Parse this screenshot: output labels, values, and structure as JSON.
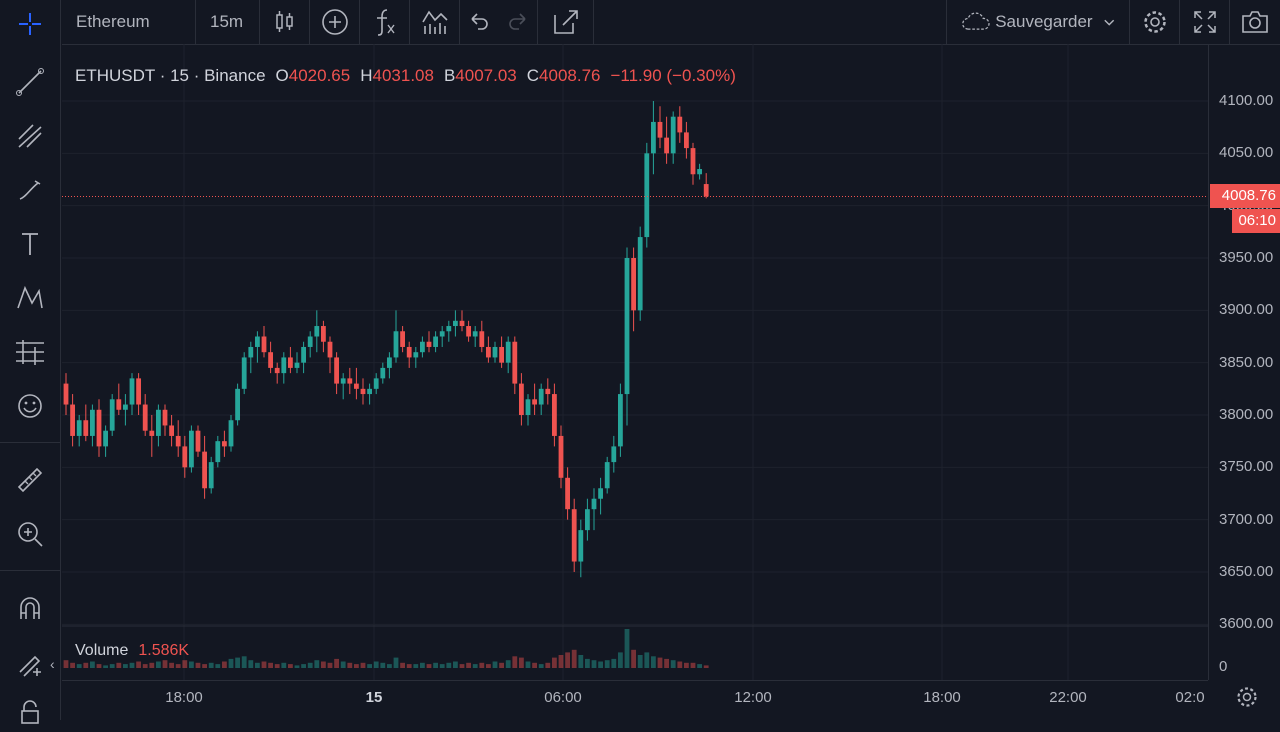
{
  "toolbar": {
    "symbol": "Ethereum",
    "interval": "15m",
    "save_label": "Sauvegarder"
  },
  "legend": {
    "symbol": "ETHUSDT · 15 · Binance",
    "open_label": "O",
    "open": "4020.65",
    "high_label": "H",
    "high": "4031.08",
    "low_label": "B",
    "low": "4007.03",
    "close_label": "C",
    "close": "4008.76",
    "change": "−11.90 (−0.30%)"
  },
  "price_axis": {
    "labels": [
      "4100.00",
      "4050.00",
      "4000.00",
      "3950.00",
      "3900.00",
      "3850.00",
      "3800.00",
      "3750.00",
      "3700.00",
      "3650.00",
      "3600.00",
      "0"
    ],
    "current_price": "4008.76",
    "countdown": "06:10"
  },
  "time_axis": {
    "labels": [
      "18:00",
      "15",
      "06:00",
      "12:00",
      "18:00",
      "22:00",
      "02:0"
    ]
  },
  "volume": {
    "label": "Volume",
    "value": "1.586K"
  },
  "colors": {
    "up": "#26a69a",
    "down": "#ef5350",
    "background": "#131722",
    "grid": "#1e222d"
  },
  "chart_data": {
    "type": "candlestick",
    "title": "ETHUSDT · 15 · Binance",
    "interval": "15m",
    "ylim": [
      3600,
      4120
    ],
    "candles": [
      [
        3830,
        3840,
        3800,
        3810
      ],
      [
        3810,
        3820,
        3770,
        3780
      ],
      [
        3780,
        3800,
        3770,
        3795
      ],
      [
        3795,
        3810,
        3775,
        3780
      ],
      [
        3780,
        3810,
        3770,
        3805
      ],
      [
        3805,
        3815,
        3760,
        3770
      ],
      [
        3770,
        3790,
        3760,
        3785
      ],
      [
        3785,
        3820,
        3780,
        3815
      ],
      [
        3815,
        3830,
        3800,
        3805
      ],
      [
        3805,
        3820,
        3790,
        3810
      ],
      [
        3810,
        3840,
        3800,
        3835
      ],
      [
        3835,
        3840,
        3800,
        3810
      ],
      [
        3810,
        3820,
        3780,
        3785
      ],
      [
        3785,
        3800,
        3760,
        3780
      ],
      [
        3780,
        3810,
        3770,
        3805
      ],
      [
        3805,
        3810,
        3780,
        3790
      ],
      [
        3790,
        3800,
        3770,
        3780
      ],
      [
        3780,
        3795,
        3760,
        3770
      ],
      [
        3770,
        3780,
        3740,
        3750
      ],
      [
        3750,
        3790,
        3745,
        3785
      ],
      [
        3785,
        3790,
        3760,
        3765
      ],
      [
        3765,
        3780,
        3720,
        3730
      ],
      [
        3730,
        3760,
        3725,
        3755
      ],
      [
        3755,
        3780,
        3750,
        3775
      ],
      [
        3775,
        3785,
        3760,
        3770
      ],
      [
        3770,
        3800,
        3765,
        3795
      ],
      [
        3795,
        3830,
        3790,
        3825
      ],
      [
        3825,
        3860,
        3820,
        3855
      ],
      [
        3855,
        3870,
        3840,
        3865
      ],
      [
        3865,
        3880,
        3850,
        3875
      ],
      [
        3875,
        3885,
        3855,
        3860
      ],
      [
        3860,
        3870,
        3840,
        3845
      ],
      [
        3845,
        3850,
        3830,
        3840
      ],
      [
        3840,
        3860,
        3830,
        3855
      ],
      [
        3855,
        3865,
        3840,
        3845
      ],
      [
        3845,
        3860,
        3840,
        3850
      ],
      [
        3850,
        3870,
        3840,
        3865
      ],
      [
        3865,
        3880,
        3855,
        3875
      ],
      [
        3875,
        3900,
        3860,
        3885
      ],
      [
        3885,
        3890,
        3860,
        3870
      ],
      [
        3870,
        3875,
        3840,
        3855
      ],
      [
        3855,
        3860,
        3820,
        3830
      ],
      [
        3830,
        3840,
        3815,
        3835
      ],
      [
        3835,
        3845,
        3820,
        3830
      ],
      [
        3830,
        3845,
        3815,
        3825
      ],
      [
        3825,
        3835,
        3810,
        3820
      ],
      [
        3820,
        3830,
        3810,
        3825
      ],
      [
        3825,
        3840,
        3820,
        3835
      ],
      [
        3835,
        3850,
        3830,
        3845
      ],
      [
        3845,
        3860,
        3835,
        3855
      ],
      [
        3855,
        3900,
        3850,
        3880
      ],
      [
        3880,
        3885,
        3860,
        3865
      ],
      [
        3865,
        3870,
        3845,
        3855
      ],
      [
        3855,
        3865,
        3845,
        3860
      ],
      [
        3860,
        3875,
        3855,
        3870
      ],
      [
        3870,
        3880,
        3860,
        3865
      ],
      [
        3865,
        3880,
        3860,
        3875
      ],
      [
        3875,
        3885,
        3865,
        3880
      ],
      [
        3880,
        3890,
        3870,
        3885
      ],
      [
        3885,
        3900,
        3875,
        3890
      ],
      [
        3890,
        3900,
        3880,
        3885
      ],
      [
        3885,
        3890,
        3870,
        3875
      ],
      [
        3875,
        3885,
        3865,
        3880
      ],
      [
        3880,
        3890,
        3860,
        3865
      ],
      [
        3865,
        3875,
        3850,
        3855
      ],
      [
        3855,
        3870,
        3850,
        3865
      ],
      [
        3865,
        3875,
        3845,
        3850
      ],
      [
        3850,
        3875,
        3840,
        3870
      ],
      [
        3870,
        3875,
        3820,
        3830
      ],
      [
        3830,
        3840,
        3790,
        3800
      ],
      [
        3800,
        3820,
        3790,
        3815
      ],
      [
        3815,
        3830,
        3800,
        3810
      ],
      [
        3810,
        3830,
        3800,
        3825
      ],
      [
        3825,
        3835,
        3810,
        3820
      ],
      [
        3820,
        3830,
        3770,
        3780
      ],
      [
        3780,
        3790,
        3730,
        3740
      ],
      [
        3740,
        3750,
        3700,
        3710
      ],
      [
        3710,
        3720,
        3650,
        3660
      ],
      [
        3660,
        3700,
        3645,
        3690
      ],
      [
        3690,
        3720,
        3680,
        3710
      ],
      [
        3710,
        3730,
        3690,
        3720
      ],
      [
        3720,
        3740,
        3705,
        3730
      ],
      [
        3730,
        3760,
        3725,
        3755
      ],
      [
        3755,
        3780,
        3745,
        3770
      ],
      [
        3770,
        3830,
        3760,
        3820
      ],
      [
        3820,
        3960,
        3790,
        3950
      ],
      [
        3950,
        3960,
        3880,
        3900
      ],
      [
        3900,
        3980,
        3890,
        3970
      ],
      [
        3970,
        4060,
        3960,
        4050
      ],
      [
        4050,
        4100,
        4030,
        4080
      ],
      [
        4080,
        4095,
        4055,
        4065
      ],
      [
        4065,
        4085,
        4040,
        4050
      ],
      [
        4050,
        4090,
        4040,
        4085
      ],
      [
        4085,
        4095,
        4060,
        4070
      ],
      [
        4070,
        4080,
        4045,
        4055
      ],
      [
        4055,
        4060,
        4020,
        4030
      ],
      [
        4030,
        4040,
        4025,
        4035
      ],
      [
        4020.65,
        4031.08,
        4007.03,
        4008.76
      ]
    ],
    "volume": [
      6,
      4,
      3,
      4,
      5,
      3,
      2,
      3,
      4,
      3,
      4,
      5,
      3,
      4,
      5,
      6,
      4,
      3,
      6,
      5,
      4,
      3,
      4,
      3,
      5,
      7,
      8,
      9,
      6,
      4,
      5,
      4,
      3,
      4,
      3,
      2,
      3,
      4,
      6,
      5,
      4,
      7,
      5,
      4,
      3,
      4,
      3,
      5,
      4,
      3,
      8,
      4,
      3,
      3,
      4,
      3,
      4,
      3,
      4,
      5,
      3,
      4,
      3,
      4,
      3,
      5,
      4,
      6,
      9,
      8,
      5,
      4,
      3,
      4,
      8,
      10,
      12,
      14,
      10,
      7,
      6,
      5,
      6,
      7,
      12,
      30,
      14,
      10,
      12,
      9,
      8,
      7,
      6,
      5,
      4,
      4,
      3,
      2
    ]
  }
}
